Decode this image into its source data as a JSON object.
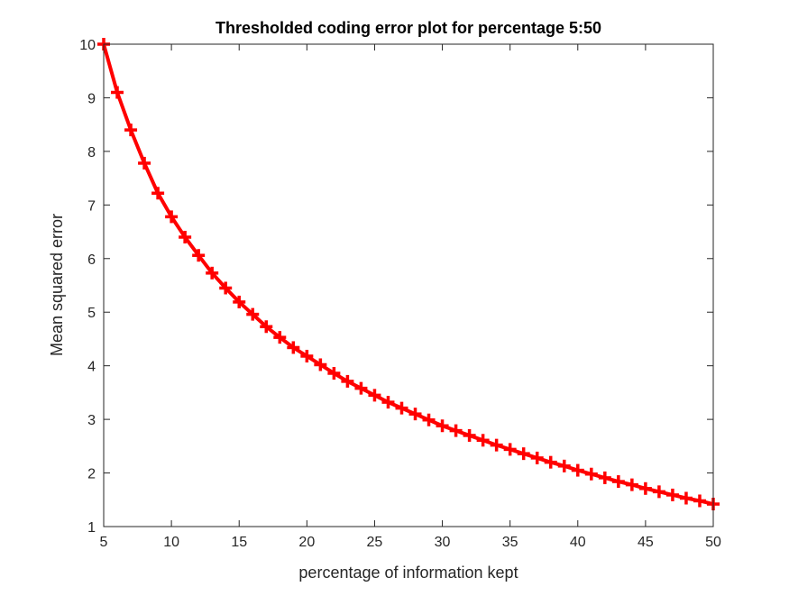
{
  "chart_data": {
    "type": "line",
    "title": "Thresholded coding error plot for percentage 5:50",
    "xlabel": "percentage of information kept",
    "ylabel": "Mean squared error",
    "xlim": [
      5,
      50
    ],
    "ylim": [
      1,
      10
    ],
    "xticks": [
      "5",
      "10",
      "15",
      "20",
      "25",
      "30",
      "35",
      "40",
      "45",
      "50"
    ],
    "yticks": [
      "1",
      "2",
      "3",
      "4",
      "5",
      "6",
      "7",
      "8",
      "9",
      "10"
    ],
    "grid": false,
    "series": [
      {
        "color": "#ff0000",
        "marker": "plus",
        "x": [
          5,
          6,
          7,
          8,
          9,
          10,
          11,
          12,
          13,
          14,
          15,
          16,
          17,
          18,
          19,
          20,
          21,
          22,
          23,
          24,
          25,
          26,
          27,
          28,
          29,
          30,
          31,
          32,
          33,
          34,
          35,
          36,
          37,
          38,
          39,
          40,
          41,
          42,
          43,
          44,
          45,
          46,
          47,
          48,
          49,
          50
        ],
        "y": [
          10.0,
          9.1,
          8.4,
          7.78,
          7.22,
          6.78,
          6.4,
          6.06,
          5.73,
          5.45,
          5.19,
          4.96,
          4.73,
          4.53,
          4.34,
          4.18,
          4.02,
          3.86,
          3.71,
          3.58,
          3.45,
          3.32,
          3.21,
          3.1,
          2.99,
          2.88,
          2.79,
          2.7,
          2.61,
          2.52,
          2.44,
          2.36,
          2.28,
          2.2,
          2.13,
          2.05,
          1.98,
          1.91,
          1.84,
          1.78,
          1.71,
          1.65,
          1.59,
          1.53,
          1.48,
          1.42
        ]
      }
    ]
  }
}
